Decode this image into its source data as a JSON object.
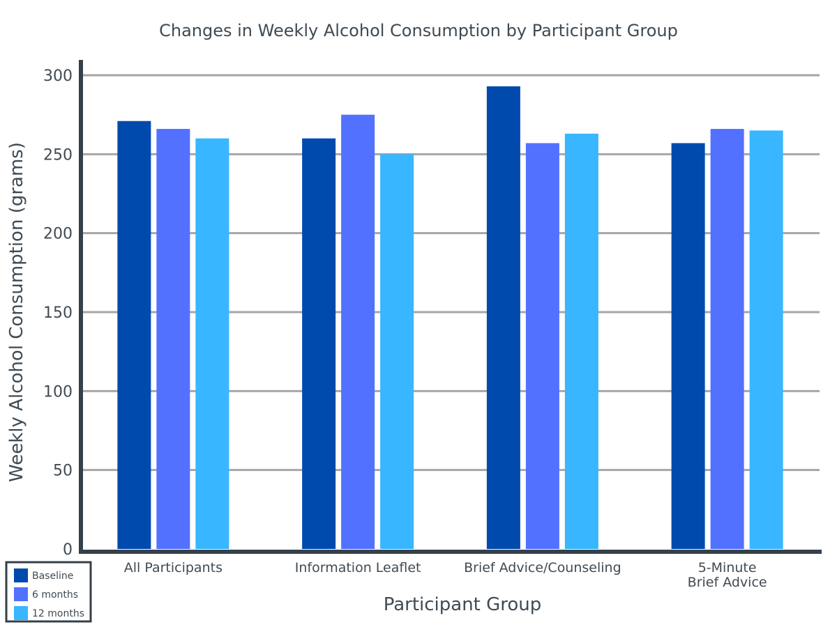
{
  "chart_data": {
    "type": "bar",
    "title": "Changes in Weekly Alcohol Consumption by Participant Group",
    "xlabel": "Participant Group",
    "ylabel": "Weekly Alcohol Consumption (grams)",
    "categories": [
      "All Participants",
      "Information Leaflet",
      "Brief Advice/Counseling",
      "5-Minute Brief Advice"
    ],
    "category_lines": [
      [
        "All Participants"
      ],
      [
        "Information Leaflet"
      ],
      [
        "Brief Advice/Counseling"
      ],
      [
        "5-Minute",
        "Brief Advice"
      ]
    ],
    "series": [
      {
        "name": "Baseline",
        "color": "#004aad",
        "values": [
          271,
          260,
          293,
          257
        ]
      },
      {
        "name": "6 months",
        "color": "#5271ff",
        "values": [
          266,
          275,
          257,
          266
        ]
      },
      {
        "name": "12 months",
        "color": "#38b6ff",
        "values": [
          260,
          250,
          263,
          265
        ]
      }
    ],
    "ylim": [
      0,
      300
    ],
    "yticks": [
      0,
      50,
      100,
      150,
      200,
      250,
      300
    ],
    "grid": true,
    "legend_position": "bottom-left",
    "colors": {
      "axis": "#36404a",
      "grid": "#a6a6a6",
      "text": "#404a52"
    }
  }
}
